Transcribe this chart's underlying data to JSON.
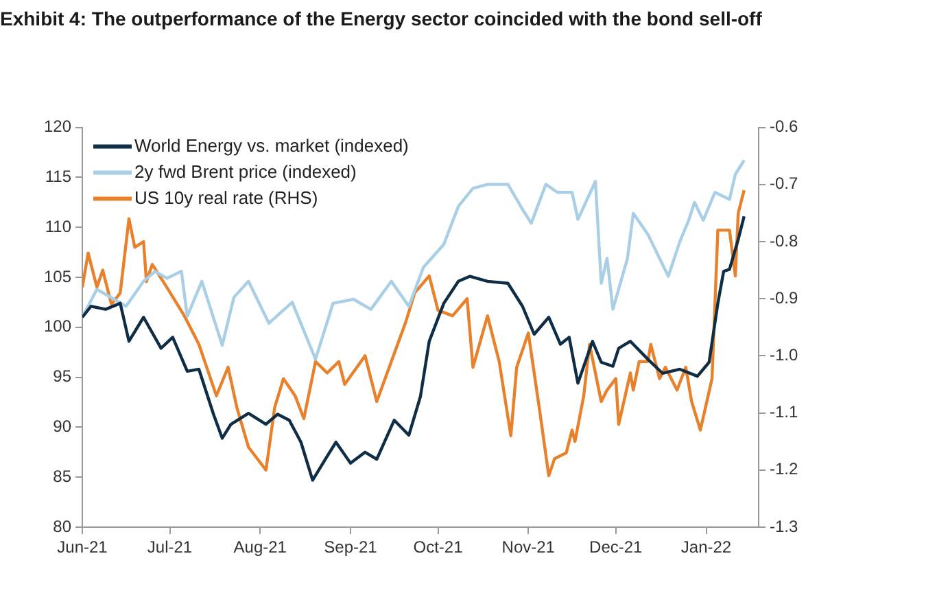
{
  "chart_data": {
    "type": "line",
    "title": "Exhibit 4: The outperformance of the Energy sector coincided with the bond sell-off",
    "xlim": [
      "2021-06-01",
      "2022-01-19"
    ],
    "xticks": [
      {
        "value": "2021-06-01",
        "label": "Jun-21"
      },
      {
        "value": "2021-07-01",
        "label": "Jul-21"
      },
      {
        "value": "2021-08-01",
        "label": "Aug-21"
      },
      {
        "value": "2021-09-01",
        "label": "Sep-21"
      },
      {
        "value": "2021-10-01",
        "label": "Oct-21"
      },
      {
        "value": "2021-11-01",
        "label": "Nov-21"
      },
      {
        "value": "2021-12-01",
        "label": "Dec-21"
      },
      {
        "value": "2022-01-01",
        "label": "Jan-22"
      }
    ],
    "ylim": [
      80,
      120
    ],
    "yticks": [
      80,
      85,
      90,
      95,
      100,
      105,
      110,
      115,
      120
    ],
    "y2lim": [
      -1.3,
      -0.6
    ],
    "y2ticks": [
      -1.3,
      -1.2,
      -1.1,
      {
        "value": -1.0,
        "label": "-1.0"
      },
      -0.9,
      -0.8,
      -0.7,
      -0.6
    ],
    "grid": false,
    "legend": "top left",
    "line_style": "solid",
    "marker": "none",
    "series": [
      {
        "name": "World Energy vs. market (indexed)",
        "color": "#0f2d45",
        "x": [
          "2021-06-01",
          "2021-06-04",
          "2021-06-09",
          "2021-06-14",
          "2021-06-17",
          "2021-06-22",
          "2021-06-28",
          "2021-07-02",
          "2021-07-07",
          "2021-07-11",
          "2021-07-16",
          "2021-07-19",
          "2021-07-22",
          "2021-07-28",
          "2021-08-03",
          "2021-08-07",
          "2021-08-11",
          "2021-08-15",
          "2021-08-19",
          "2021-08-24",
          "2021-08-27",
          "2021-09-01",
          "2021-09-06",
          "2021-09-10",
          "2021-09-16",
          "2021-09-21",
          "2021-09-25",
          "2021-09-28",
          "2021-10-03",
          "2021-10-08",
          "2021-10-12",
          "2021-10-18",
          "2021-10-25",
          "2021-10-30",
          "2021-11-03",
          "2021-11-08",
          "2021-11-12",
          "2021-11-15",
          "2021-11-18",
          "2021-11-23",
          "2021-11-26",
          "2021-11-30",
          "2021-12-02",
          "2021-12-06",
          "2021-12-12",
          "2021-12-17",
          "2021-12-23",
          "2021-12-29",
          "2022-01-02",
          "2022-01-05",
          "2022-01-07",
          "2022-01-09",
          "2022-01-12",
          "2022-01-14"
        ],
        "values": [
          101.0,
          102.1,
          101.8,
          102.4,
          98.6,
          101.0,
          97.9,
          99.0,
          95.6,
          95.8,
          91.3,
          88.9,
          90.3,
          91.4,
          90.3,
          91.3,
          90.7,
          88.5,
          84.7,
          87.1,
          88.5,
          86.4,
          87.5,
          86.8,
          90.7,
          89.2,
          93.1,
          98.6,
          102.4,
          104.6,
          105.1,
          104.6,
          104.4,
          102.1,
          99.3,
          101.0,
          98.3,
          99.0,
          94.4,
          98.6,
          96.5,
          96.1,
          97.9,
          98.6,
          96.8,
          95.4,
          95.8,
          95.1,
          96.5,
          102.4,
          105.6,
          105.8,
          108.8,
          111.1
        ]
      },
      {
        "name": "2y fwd Brent price (indexed)",
        "color": "#a8cfe6",
        "x": [
          "2021-06-01",
          "2021-06-06",
          "2021-06-16",
          "2021-06-22",
          "2021-06-26",
          "2021-06-30",
          "2021-07-05",
          "2021-07-07",
          "2021-07-12",
          "2021-07-19",
          "2021-07-23",
          "2021-07-28",
          "2021-08-04",
          "2021-08-12",
          "2021-08-20",
          "2021-08-26",
          "2021-09-02",
          "2021-09-08",
          "2021-09-15",
          "2021-09-21",
          "2021-09-26",
          "2021-10-03",
          "2021-10-08",
          "2021-10-13",
          "2021-10-18",
          "2021-10-25",
          "2021-10-30",
          "2021-11-02",
          "2021-11-07",
          "2021-11-11",
          "2021-11-16",
          "2021-11-18",
          "2021-11-24",
          "2021-11-26",
          "2021-11-28",
          "2021-11-30",
          "2021-12-05",
          "2021-12-07",
          "2021-12-12",
          "2021-12-19",
          "2021-12-23",
          "2021-12-26",
          "2021-12-28",
          "2021-12-31",
          "2022-01-04",
          "2022-01-09",
          "2022-01-11",
          "2022-01-14"
        ],
        "values": [
          101.0,
          103.8,
          102.1,
          104.6,
          105.6,
          104.9,
          105.6,
          101.1,
          104.6,
          98.2,
          103.0,
          104.6,
          100.4,
          102.5,
          96.8,
          102.4,
          102.8,
          101.8,
          104.6,
          102.1,
          106.0,
          108.3,
          112.1,
          113.9,
          114.3,
          114.3,
          111.8,
          110.4,
          114.3,
          113.5,
          113.5,
          110.8,
          114.6,
          104.4,
          106.9,
          101.8,
          106.9,
          111.4,
          109.3,
          105.1,
          108.6,
          110.7,
          112.5,
          110.7,
          113.5,
          112.8,
          115.3,
          116.7
        ]
      },
      {
        "name": "US 10y real rate (RHS)",
        "color": "#e8812c",
        "axis": "y2",
        "x": [
          "2021-06-01",
          "2021-06-03",
          "2021-06-06",
          "2021-06-08",
          "2021-06-11",
          "2021-06-14",
          "2021-06-17",
          "2021-06-19",
          "2021-06-22",
          "2021-06-23",
          "2021-06-25",
          "2021-06-30",
          "2021-07-06",
          "2021-07-08",
          "2021-07-11",
          "2021-07-17",
          "2021-07-21",
          "2021-07-24",
          "2021-07-28",
          "2021-08-03",
          "2021-08-06",
          "2021-08-09",
          "2021-08-13",
          "2021-08-16",
          "2021-08-20",
          "2021-08-24",
          "2021-08-28",
          "2021-08-30",
          "2021-09-06",
          "2021-09-10",
          "2021-09-15",
          "2021-09-20",
          "2021-09-23",
          "2021-09-28",
          "2021-10-01",
          "2021-10-06",
          "2021-10-11",
          "2021-10-13",
          "2021-10-18",
          "2021-10-22",
          "2021-10-26",
          "2021-10-28",
          "2021-11-01",
          "2021-11-05",
          "2021-11-08",
          "2021-11-10",
          "2021-11-14",
          "2021-11-16",
          "2021-11-17",
          "2021-11-20",
          "2021-11-22",
          "2021-11-26",
          "2021-11-28",
          "2021-12-01",
          "2021-12-02",
          "2021-12-06",
          "2021-12-07",
          "2021-12-09",
          "2021-12-12",
          "2021-12-13",
          "2021-12-16",
          "2021-12-18",
          "2021-12-22",
          "2021-12-25",
          "2021-12-27",
          "2021-12-30",
          "2022-01-03",
          "2022-01-05",
          "2022-01-09",
          "2022-01-11",
          "2022-01-12",
          "2022-01-14"
        ],
        "values": [
          -0.88,
          -0.82,
          -0.88,
          -0.85,
          -0.91,
          -0.89,
          -0.76,
          -0.81,
          -0.8,
          -0.87,
          -0.84,
          -0.88,
          -0.93,
          -0.95,
          -0.98,
          -1.07,
          -1.02,
          -1.09,
          -1.16,
          -1.2,
          -1.09,
          -1.04,
          -1.07,
          -1.11,
          -1.01,
          -1.03,
          -1.01,
          -1.05,
          -1.0,
          -1.08,
          -1.01,
          -0.94,
          -0.89,
          -0.86,
          -0.92,
          -0.93,
          -0.9,
          -1.02,
          -0.93,
          -1.01,
          -1.14,
          -1.02,
          -0.96,
          -1.1,
          -1.21,
          -1.18,
          -1.17,
          -1.13,
          -1.15,
          -1.07,
          -0.98,
          -1.08,
          -1.06,
          -1.04,
          -1.12,
          -1.03,
          -1.06,
          -1.01,
          -1.01,
          -0.98,
          -1.04,
          -1.02,
          -1.06,
          -1.02,
          -1.08,
          -1.13,
          -1.04,
          -0.78,
          -0.78,
          -0.86,
          -0.75,
          -0.71
        ]
      }
    ]
  }
}
